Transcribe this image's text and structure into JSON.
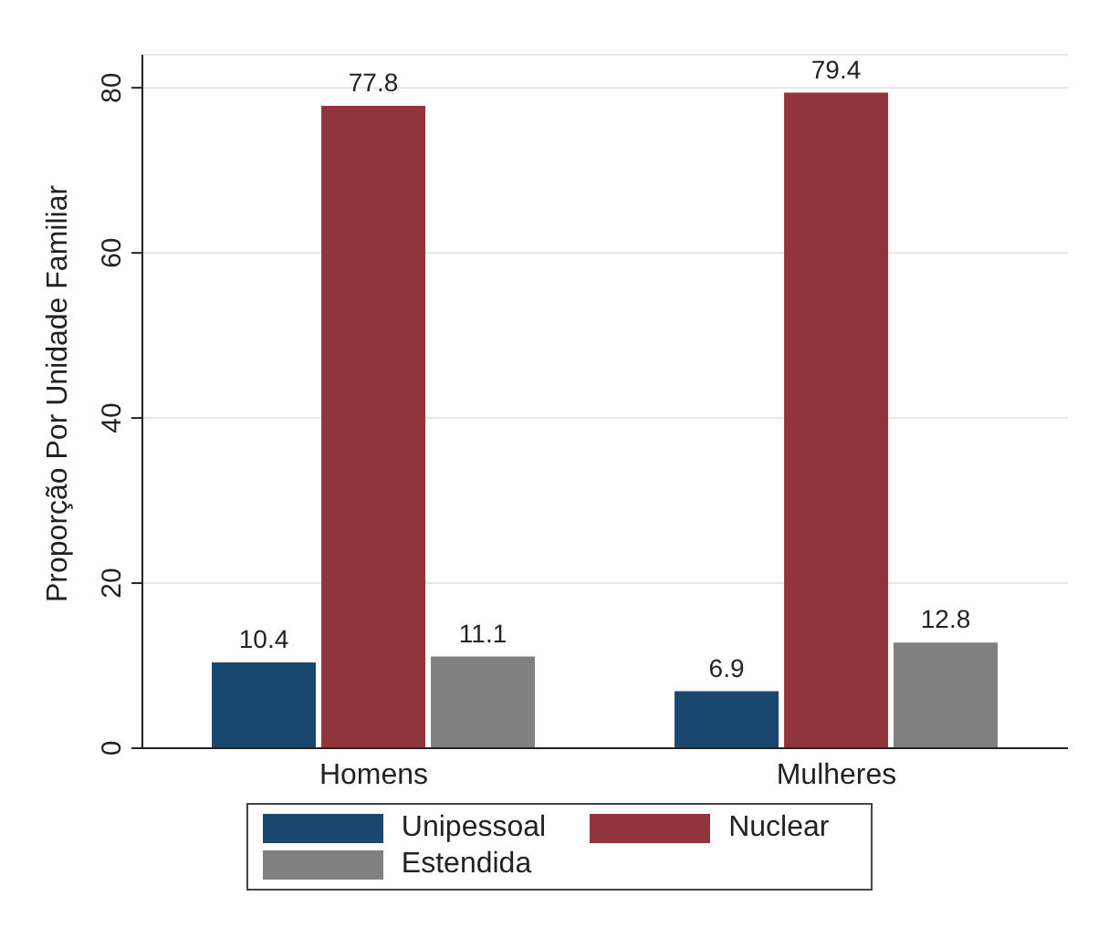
{
  "chart_data": {
    "type": "bar",
    "ylabel": "Proporção Por Unidade Familiar",
    "categories": [
      "Homens",
      "Mulheres"
    ],
    "series": [
      {
        "name": "Unipessoal",
        "color": "#1a476f",
        "values": [
          10.4,
          6.9
        ]
      },
      {
        "name": "Nuclear",
        "color": "#90353b",
        "values": [
          77.8,
          79.4
        ]
      },
      {
        "name": "Estendida",
        "color": "#808080",
        "values": [
          11.1,
          12.8
        ]
      }
    ],
    "ylim": [
      0,
      84
    ],
    "yticks": [
      0,
      20,
      40,
      60,
      80
    ],
    "grid": "y",
    "legend": "bottom",
    "data_labels": true
  }
}
